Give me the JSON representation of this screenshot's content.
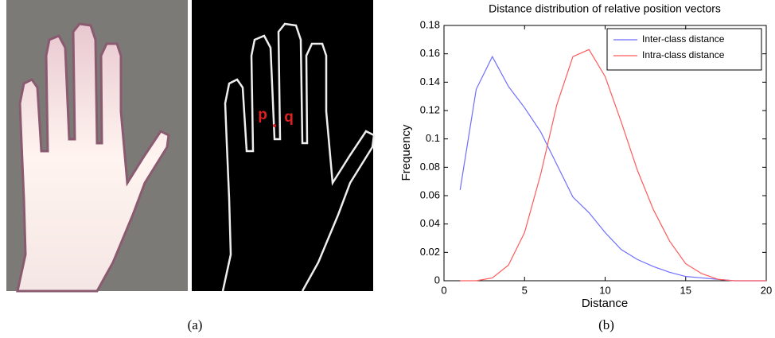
{
  "figure": {
    "labels": [
      "p",
      "q"
    ],
    "captions": [
      "(a)",
      "(b)"
    ]
  },
  "chart_data": {
    "type": "line",
    "title": "Distance distribution of relative position vectors",
    "x_label": "Distance",
    "y_label": "Frequency",
    "x": [
      1,
      2,
      3,
      4,
      5,
      6,
      7,
      8,
      9,
      10,
      11,
      12,
      13,
      14,
      15,
      16,
      17,
      18,
      19,
      20
    ],
    "series": [
      {
        "name": "Inter-class distance",
        "color": "#6e6eff",
        "values": [
          0.064,
          0.135,
          0.158,
          0.137,
          0.122,
          0.105,
          0.082,
          0.059,
          0.048,
          0.034,
          0.022,
          0.015,
          0.01,
          0.006,
          0.003,
          0.002,
          0.001,
          0,
          0,
          0
        ]
      },
      {
        "name": "Intra-class distance",
        "color": "#ff5a5a",
        "values": [
          0,
          0,
          0.002,
          0.011,
          0.034,
          0.075,
          0.124,
          0.158,
          0.163,
          0.144,
          0.112,
          0.078,
          0.05,
          0.028,
          0.012,
          0.005,
          0.001,
          0,
          0,
          0
        ]
      }
    ],
    "xlim": [
      0,
      20
    ],
    "xticks": [
      0,
      5,
      10,
      15,
      20
    ],
    "ylim": [
      0,
      0.18
    ],
    "yticks": [
      0,
      0.02,
      0.04,
      0.06,
      0.08,
      0.1,
      0.12,
      0.14,
      0.16,
      0.18
    ],
    "grid": false,
    "legend": "top-right"
  }
}
